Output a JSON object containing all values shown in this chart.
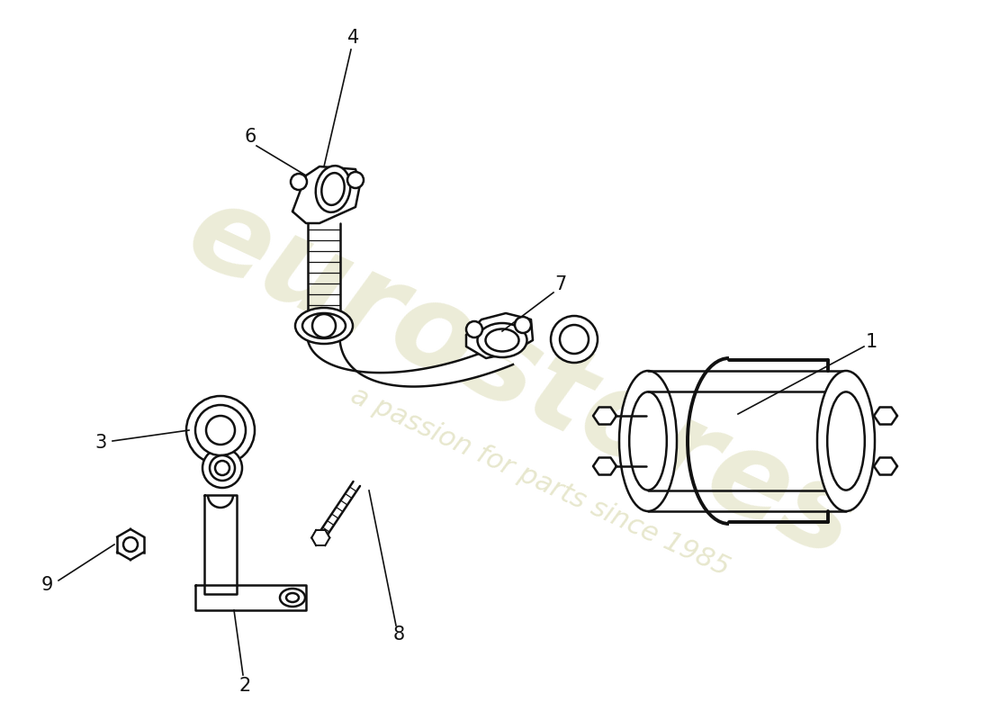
{
  "background_color": "#ffffff",
  "line_color": "#111111",
  "label_color": "#111111",
  "wm_color": "#ddddb8",
  "wm_text1": "eurostores",
  "wm_text2": "a passion for parts since 1985",
  "figsize": [
    11.0,
    8.0
  ],
  "dpi": 100
}
